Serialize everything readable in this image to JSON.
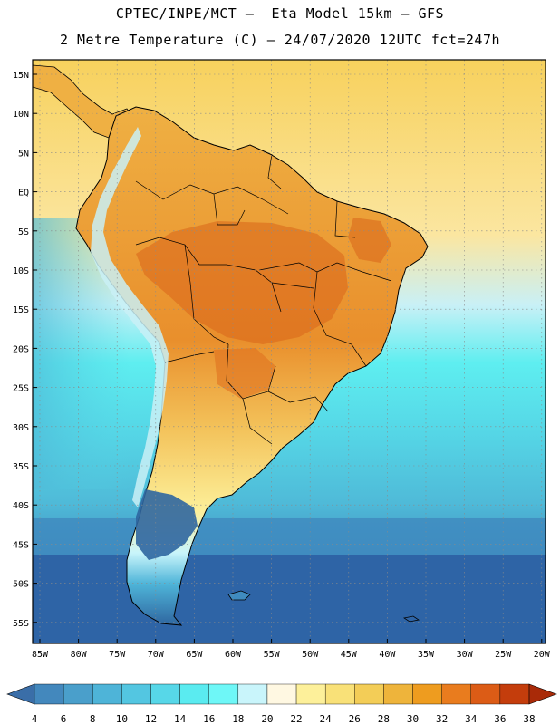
{
  "title": {
    "line1": "CPTEC/INPE/MCT –  Eta Model 15km – GFS",
    "line2": "2 Metre Temperature (C) – 24/07/2020 12UTC fct=247h"
  },
  "latitude_labels": [
    "15N",
    "10N",
    "5N",
    "EQ",
    "5S",
    "10S",
    "15S",
    "20S",
    "25S",
    "30S",
    "35S",
    "40S",
    "45S",
    "50S",
    "55S"
  ],
  "longitude_labels": [
    "85W",
    "80W",
    "75W",
    "70W",
    "65W",
    "60W",
    "55W",
    "50W",
    "45W",
    "40W",
    "35W",
    "30W",
    "25W",
    "20W"
  ],
  "colorbar": {
    "levels": [
      "4",
      "6",
      "8",
      "10",
      "12",
      "14",
      "16",
      "18",
      "20",
      "22",
      "24",
      "26",
      "28",
      "30",
      "32",
      "34",
      "36",
      "38"
    ],
    "colors": [
      "#3a6ea8",
      "#4388bd",
      "#4a9fcb",
      "#4eb4d8",
      "#53c6e1",
      "#57d7e8",
      "#5aebf0",
      "#6ef7f7",
      "#c9f5fb",
      "#fff8e2",
      "#fdf09a",
      "#f9e178",
      "#f3cd57",
      "#eeb43b",
      "#ee9c1f",
      "#e97c1e",
      "#dc5c16",
      "#c43d0c",
      "#a92a08"
    ]
  },
  "map_colors": {
    "ocean_deep": "#2e64a6",
    "ocean_mid": "#3f8bbf",
    "ocean_light": "#4fbad8",
    "ocean_cyan": "#55d6e6",
    "ocean_bright": "#5eeef0",
    "ocean_warm": "#fbe6a0",
    "tropical_sea": "#f6d262",
    "land_hot": "#e98f2c",
    "land_warm": "#efaa42",
    "land_hottest": "#d9651a",
    "andes_cold": "#c9f0f6",
    "patagonia_cold": "#2f66a0"
  }
}
